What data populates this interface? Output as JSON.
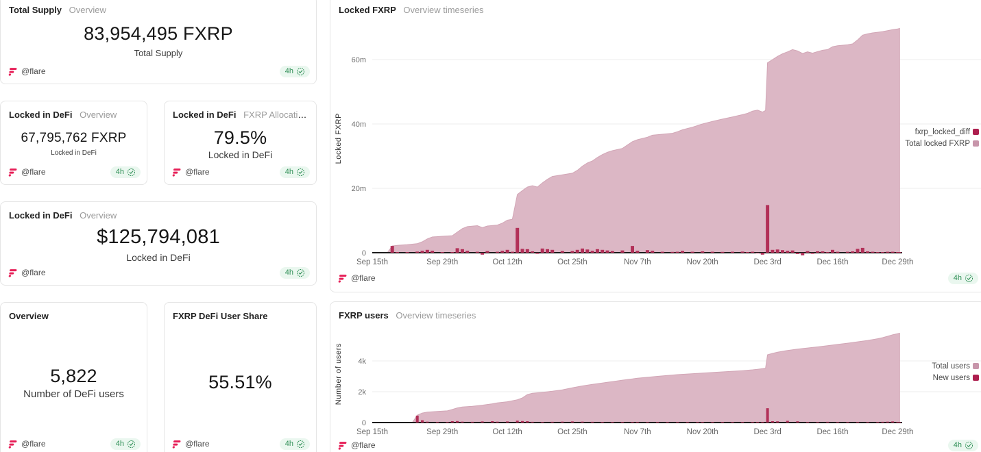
{
  "colors": {
    "area_pink": "#dcb7c5",
    "area_edge": "#d2a6b6",
    "bar_crimson": "#b23058",
    "legend_crimson_marker": "#ad1e4e",
    "legend_pink_marker": "#c795aa",
    "badge_green": "#2f8f56",
    "badge_green_bg": "#eaf7ef",
    "flare_pink": "#e61f57",
    "grid_line": "#ececec",
    "axis_line": "#1c1c1c"
  },
  "footer": {
    "author": "@flare",
    "badge": "4h"
  },
  "stat_cards": [
    {
      "title": "Total Supply",
      "subtitle": "Overview",
      "value": "83,954,495 FXRP",
      "label": "Total Supply"
    },
    {
      "title": "Locked in DeFi",
      "subtitle": "Overview",
      "value": "67,795,762 FXRP",
      "label": "Locked in DeFi"
    },
    {
      "title": "Locked in DeFi",
      "subtitle": "FXRP Allocation in …",
      "value": "79.5%",
      "label": "Locked in DeFi"
    },
    {
      "title": "Locked in DeFi",
      "subtitle": "Overview",
      "value": "$125,794,081",
      "label": "Locked in DeFi"
    },
    {
      "title": "Overview",
      "subtitle": "",
      "value": "5,822",
      "label": "Number of DeFi users"
    },
    {
      "title": "FXRP DeFi User Share",
      "subtitle": "",
      "value": "55.51%",
      "label": ""
    }
  ],
  "chart_data": [
    {
      "type": "area",
      "title": "Locked FXRP",
      "subtitle": "Overview timeseries",
      "ylabel": "Locked FXRP",
      "unit": "FXRP (millions)",
      "x_unit": "days since Sep 15",
      "grid": true,
      "legend_position": "right",
      "xlim": [
        0,
        105.5
      ],
      "ylim": [
        0,
        71
      ],
      "xticks": [
        {
          "d": 0,
          "label": "Sep 15th"
        },
        {
          "d": 14,
          "label": "Sep 29th"
        },
        {
          "d": 27,
          "label": "Oct 12th"
        },
        {
          "d": 40,
          "label": "Oct 25th"
        },
        {
          "d": 53,
          "label": "Nov 7th"
        },
        {
          "d": 66,
          "label": "Nov 20th"
        },
        {
          "d": 79,
          "label": "Dec 3rd"
        },
        {
          "d": 92,
          "label": "Dec 16th"
        },
        {
          "d": 105,
          "label": "Dec 29th"
        }
      ],
      "yticks": [
        {
          "v": 0,
          "label": "0"
        },
        {
          "v": 20,
          "label": "20m"
        },
        {
          "v": 40,
          "label": "40m"
        },
        {
          "v": 60,
          "label": "60m"
        }
      ],
      "series": [
        {
          "name": "fxrp_locked_diff",
          "kind": "bar",
          "color": "#b23058",
          "marker": "#ad1e4e"
        },
        {
          "name": "Total locked FXRP",
          "kind": "area",
          "color": "#dcb7c5",
          "edge": "#d2a6b6",
          "marker": "#c795aa"
        }
      ],
      "points_columns": [
        "day",
        "total_locked_m",
        "locked_diff_m"
      ],
      "points": [
        [
          0,
          0,
          0
        ],
        [
          3,
          0,
          0
        ],
        [
          4,
          2.1,
          2.1
        ],
        [
          5,
          2.3,
          0.2
        ],
        [
          7,
          2.5,
          0.2
        ],
        [
          9,
          2.8,
          0.35
        ],
        [
          10,
          3.4,
          0.6
        ],
        [
          11,
          4.3,
          0.9
        ],
        [
          12,
          4.9,
          0.6
        ],
        [
          14,
          5.1,
          0.15
        ],
        [
          16,
          5.3,
          0.2
        ],
        [
          17,
          6.4,
          1.4
        ],
        [
          18,
          7.5,
          1.1
        ],
        [
          19,
          8.1,
          0.6
        ],
        [
          21,
          8.4,
          0.3
        ],
        [
          22,
          7.8,
          -0.6
        ],
        [
          23,
          8.3,
          0.5
        ],
        [
          25,
          8.6,
          0.3
        ],
        [
          26,
          9.2,
          0.6
        ],
        [
          27,
          10.1,
          0.9
        ],
        [
          28,
          10.4,
          0.3
        ],
        [
          29,
          18.1,
          7.7
        ],
        [
          30,
          19.3,
          1.2
        ],
        [
          31,
          20.4,
          1.1
        ],
        [
          32,
          20.8,
          0.4
        ],
        [
          33,
          20.4,
          -0.35
        ],
        [
          34,
          21.7,
          1.3
        ],
        [
          35,
          22.8,
          1.1
        ],
        [
          36,
          23.7,
          0.9
        ],
        [
          38,
          24.2,
          0.5
        ],
        [
          40,
          24.7,
          0.5
        ],
        [
          41,
          25.6,
          0.9
        ],
        [
          42,
          26.9,
          1.3
        ],
        [
          43,
          27.9,
          1.0
        ],
        [
          44,
          28.5,
          0.6
        ],
        [
          45,
          29.6,
          1.1
        ],
        [
          46,
          30.5,
          0.9
        ],
        [
          47,
          31.2,
          0.7
        ],
        [
          48,
          31.7,
          0.5
        ],
        [
          50,
          32.4,
          0.7
        ],
        [
          52,
          34.5,
          2.1
        ],
        [
          53,
          35.1,
          0.6
        ],
        [
          55,
          35.9,
          0.8
        ],
        [
          56,
          36.5,
          0.6
        ],
        [
          58,
          36.8,
          0.3
        ],
        [
          60,
          37.1,
          0.25
        ],
        [
          61,
          37.6,
          0.3
        ],
        [
          62,
          38.2,
          0.55
        ],
        [
          64,
          39.0,
          0.3
        ],
        [
          66,
          40.0,
          0.4
        ],
        [
          68,
          40.8,
          0.3
        ],
        [
          70,
          41.5,
          0.25
        ],
        [
          72,
          42.2,
          0.3
        ],
        [
          74,
          42.9,
          0.35
        ],
        [
          75,
          43.3,
          0.2
        ],
        [
          76,
          44.0,
          0.3
        ],
        [
          77,
          44.3,
          -0.2
        ],
        [
          78,
          43.7,
          -0.6
        ],
        [
          78.6,
          44.2,
          0
        ],
        [
          79,
          59.0,
          14.8
        ],
        [
          80,
          60.0,
          0.9
        ],
        [
          81,
          61.0,
          1.0
        ],
        [
          82,
          61.8,
          0.8
        ],
        [
          83,
          62.4,
          0.6
        ],
        [
          84,
          63.1,
          0.7
        ],
        [
          85,
          62.7,
          -0.4
        ],
        [
          86,
          61.9,
          -0.8
        ],
        [
          87,
          62.4,
          0.5
        ],
        [
          88,
          62.0,
          -0.35
        ],
        [
          89,
          62.5,
          0.45
        ],
        [
          90,
          62.9,
          0.4
        ],
        [
          91,
          63.1,
          0.2
        ],
        [
          92,
          64.0,
          0.9
        ],
        [
          93,
          64.3,
          0.3
        ],
        [
          95,
          64.6,
          0.3
        ],
        [
          96,
          64.9,
          0.4
        ],
        [
          97,
          66.1,
          1.2
        ],
        [
          98,
          67.6,
          1.5
        ],
        [
          99,
          68.0,
          0.4
        ],
        [
          100,
          68.3,
          0.3
        ],
        [
          101,
          68.5,
          0.2
        ],
        [
          102,
          68.7,
          0.2
        ],
        [
          103,
          69.0,
          0.3
        ],
        [
          104,
          69.3,
          0.3
        ],
        [
          105,
          69.5,
          0.2
        ],
        [
          105.4,
          69.7,
          0.1
        ]
      ]
    },
    {
      "type": "area",
      "title": "FXRP users",
      "subtitle": "Overview timeseries",
      "ylabel": "Number of users",
      "unit": "users",
      "x_unit": "days since Sep 15",
      "grid": true,
      "legend_position": "right",
      "xlim": [
        0,
        105.5
      ],
      "ylim": [
        0,
        6300
      ],
      "xticks": [
        {
          "d": 0,
          "label": "Sep 15th"
        },
        {
          "d": 14,
          "label": "Sep 29th"
        },
        {
          "d": 27,
          "label": "Oct 12th"
        },
        {
          "d": 40,
          "label": "Oct 25th"
        },
        {
          "d": 53,
          "label": "Nov 7th"
        },
        {
          "d": 66,
          "label": "Nov 20th"
        },
        {
          "d": 79,
          "label": "Dec 3rd"
        },
        {
          "d": 92,
          "label": "Dec 16th"
        },
        {
          "d": 105,
          "label": "Dec 29th"
        }
      ],
      "yticks": [
        {
          "v": 0,
          "label": "0"
        },
        {
          "v": 2000,
          "label": "2k"
        },
        {
          "v": 4000,
          "label": "4k"
        }
      ],
      "series": [
        {
          "name": "Total users",
          "kind": "area",
          "color": "#dcb7c5",
          "edge": "#d2a6b6",
          "marker": "#c795aa"
        },
        {
          "name": "New users",
          "kind": "bar",
          "color": "#b23058",
          "marker": "#ad1e4e"
        }
      ],
      "points_columns": [
        "day",
        "total_users",
        "new_users"
      ],
      "points": [
        [
          0,
          0,
          0
        ],
        [
          8,
          0,
          0
        ],
        [
          9,
          480,
          450
        ],
        [
          10,
          620,
          150
        ],
        [
          11,
          680,
          60
        ],
        [
          13,
          720,
          40
        ],
        [
          15,
          760,
          40
        ],
        [
          16,
          850,
          90
        ],
        [
          17,
          950,
          100
        ],
        [
          18,
          1010,
          60
        ],
        [
          20,
          1060,
          50
        ],
        [
          22,
          1130,
          70
        ],
        [
          24,
          1220,
          90
        ],
        [
          25,
          1280,
          60
        ],
        [
          27,
          1350,
          70
        ],
        [
          29,
          1480,
          120
        ],
        [
          30,
          1600,
          100
        ],
        [
          31,
          1820,
          90
        ],
        [
          32,
          1900,
          50
        ],
        [
          34,
          1960,
          40
        ],
        [
          36,
          2030,
          50
        ],
        [
          38,
          2120,
          60
        ],
        [
          40,
          2260,
          70
        ],
        [
          42,
          2380,
          60
        ],
        [
          44,
          2480,
          50
        ],
        [
          46,
          2570,
          40
        ],
        [
          48,
          2660,
          40
        ],
        [
          50,
          2750,
          30
        ],
        [
          52,
          2830,
          40
        ],
        [
          53,
          2880,
          30
        ],
        [
          55,
          2940,
          30
        ],
        [
          57,
          3000,
          25
        ],
        [
          59,
          3060,
          25
        ],
        [
          61,
          3110,
          20
        ],
        [
          63,
          3150,
          20
        ],
        [
          65,
          3190,
          20
        ],
        [
          66,
          3210,
          15
        ],
        [
          68,
          3250,
          20
        ],
        [
          70,
          3290,
          20
        ],
        [
          72,
          3330,
          20
        ],
        [
          74,
          3370,
          20
        ],
        [
          76,
          3420,
          25
        ],
        [
          77,
          3460,
          30
        ],
        [
          78,
          3500,
          25
        ],
        [
          78.6,
          3530,
          0
        ],
        [
          79,
          4400,
          930
        ],
        [
          80,
          4490,
          90
        ],
        [
          81,
          4570,
          80
        ],
        [
          83,
          4680,
          110
        ],
        [
          85,
          4770,
          80
        ],
        [
          87,
          4840,
          40
        ],
        [
          89,
          4910,
          40
        ],
        [
          91,
          4990,
          50
        ],
        [
          93,
          5070,
          40
        ],
        [
          95,
          5150,
          40
        ],
        [
          97,
          5240,
          40
        ],
        [
          99,
          5330,
          30
        ],
        [
          101,
          5440,
          40
        ],
        [
          102,
          5510,
          50
        ],
        [
          103,
          5600,
          60
        ],
        [
          104,
          5700,
          70
        ],
        [
          105,
          5770,
          40
        ],
        [
          105.4,
          5800,
          20
        ]
      ]
    }
  ]
}
